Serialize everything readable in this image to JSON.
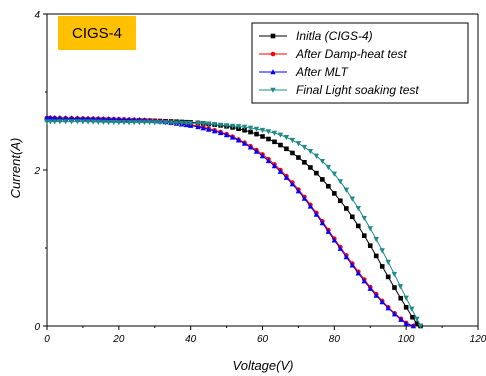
{
  "chart_data": {
    "type": "line",
    "annotation": "CIGS-4",
    "xlabel": "Voltage(V)",
    "ylabel": "Current(A)",
    "xlim": [
      0,
      120
    ],
    "ylim": [
      0,
      4
    ],
    "xticks": [
      0,
      20,
      40,
      60,
      80,
      100,
      120
    ],
    "yticks": [
      0,
      2,
      4
    ],
    "grid": false,
    "legend_position": "top-right",
    "series": [
      {
        "name": "Initla (CIGS-4)",
        "color": "#000000",
        "marker": "square",
        "x": [
          0,
          10,
          20,
          30,
          40,
          45,
          50,
          55,
          60,
          65,
          70,
          75,
          80,
          85,
          90,
          95,
          100,
          103,
          104
        ],
        "y": [
          2.65,
          2.65,
          2.64,
          2.63,
          2.61,
          2.59,
          2.56,
          2.51,
          2.43,
          2.32,
          2.16,
          1.96,
          1.7,
          1.4,
          1.03,
          0.63,
          0.24,
          0.03,
          0.0
        ]
      },
      {
        "name": "After Damp-heat test",
        "color": "#ff0000",
        "marker": "circle",
        "x": [
          0,
          10,
          20,
          30,
          40,
          45,
          50,
          55,
          60,
          65,
          70,
          75,
          80,
          85,
          90,
          95,
          100,
          102
        ],
        "y": [
          2.67,
          2.66,
          2.65,
          2.63,
          2.58,
          2.53,
          2.46,
          2.35,
          2.2,
          2.0,
          1.75,
          1.45,
          1.12,
          0.8,
          0.5,
          0.24,
          0.04,
          0.0
        ]
      },
      {
        "name": "After MLT",
        "color": "#0000ff",
        "marker": "triangle-up",
        "x": [
          0,
          10,
          20,
          30,
          40,
          45,
          50,
          55,
          60,
          65,
          70,
          75,
          80,
          85,
          90,
          95,
          100,
          102
        ],
        "y": [
          2.67,
          2.66,
          2.65,
          2.63,
          2.57,
          2.52,
          2.45,
          2.34,
          2.18,
          1.98,
          1.73,
          1.43,
          1.1,
          0.78,
          0.48,
          0.23,
          0.03,
          0.0
        ]
      },
      {
        "name": "Final Light soaking test",
        "color": "#1f8a8a",
        "marker": "triangle-down",
        "x": [
          0,
          10,
          20,
          30,
          40,
          45,
          50,
          55,
          60,
          65,
          70,
          75,
          80,
          85,
          90,
          95,
          100,
          104
        ],
        "y": [
          2.62,
          2.62,
          2.61,
          2.61,
          2.6,
          2.59,
          2.57,
          2.55,
          2.51,
          2.45,
          2.34,
          2.18,
          1.95,
          1.63,
          1.25,
          0.82,
          0.36,
          0.0
        ]
      }
    ]
  }
}
